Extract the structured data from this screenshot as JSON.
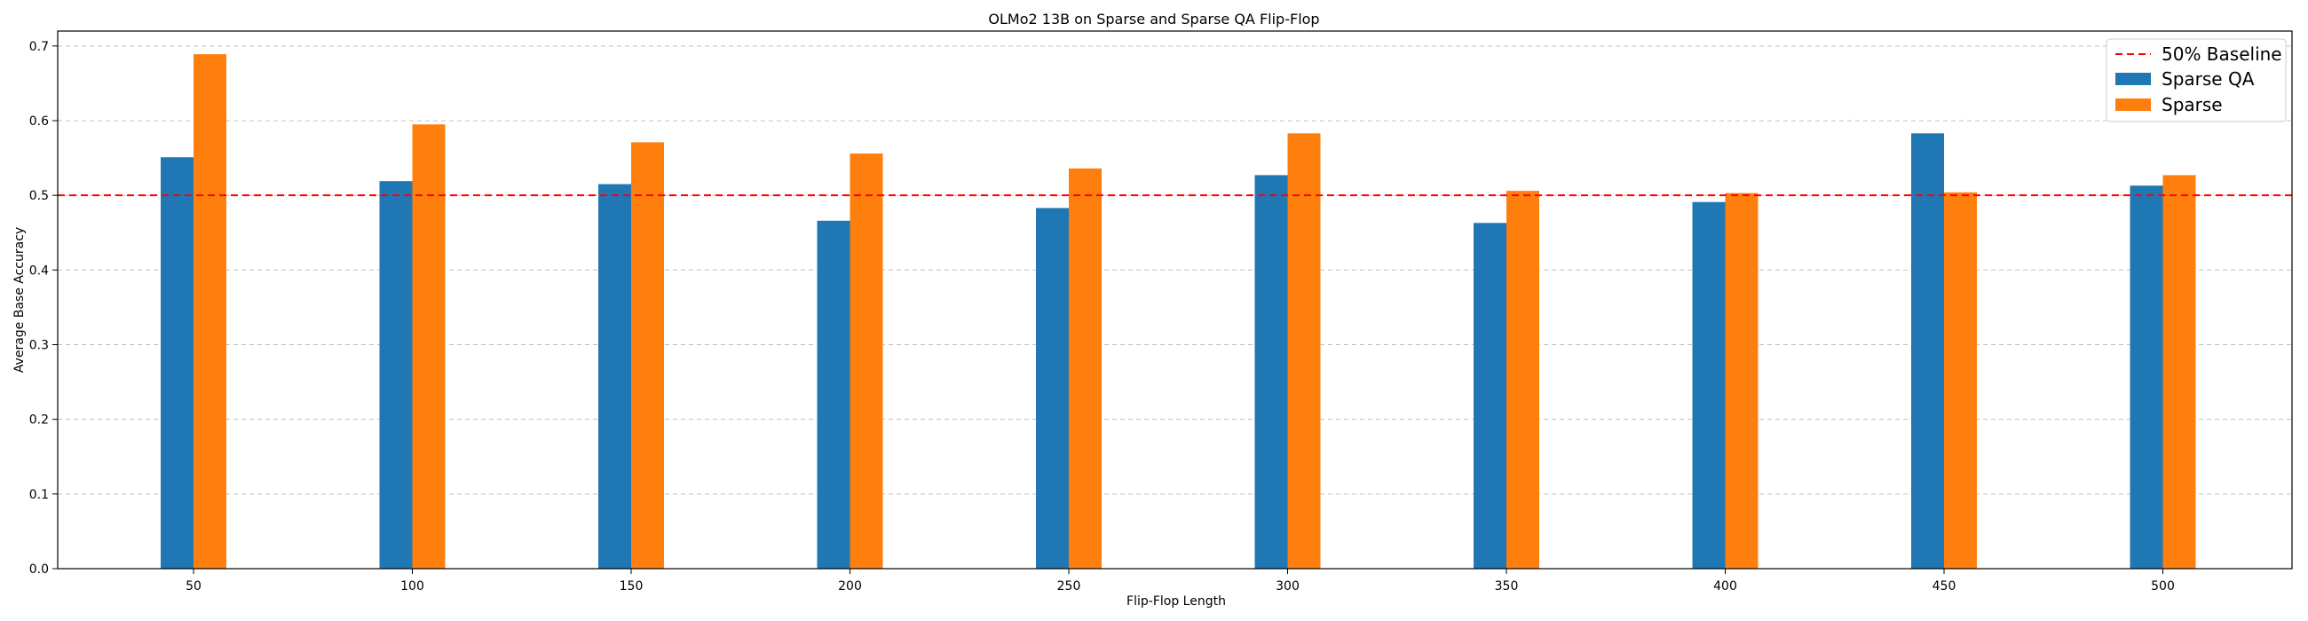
{
  "chart_data": {
    "type": "bar",
    "title": "OLMo2 13B on Sparse and Sparse QA Flip-Flop",
    "xlabel": "Flip-Flop Length",
    "ylabel": "Average Base Accuracy",
    "categories": [
      "50",
      "100",
      "150",
      "200",
      "250",
      "300",
      "350",
      "400",
      "450",
      "500"
    ],
    "series": [
      {
        "name": "Sparse QA",
        "color": "#1f77b4",
        "values": [
          0.551,
          0.519,
          0.515,
          0.466,
          0.483,
          0.527,
          0.463,
          0.491,
          0.583,
          0.513
        ]
      },
      {
        "name": "Sparse",
        "color": "#ff7f0e",
        "values": [
          0.689,
          0.595,
          0.571,
          0.556,
          0.536,
          0.583,
          0.506,
          0.503,
          0.504,
          0.527
        ]
      }
    ],
    "baseline": {
      "name": "50% Baseline",
      "value": 0.5,
      "color": "#ff0000",
      "style": "dashed"
    },
    "ylim": [
      0.0,
      0.72
    ],
    "yticks": [
      "0.0",
      "0.1",
      "0.2",
      "0.3",
      "0.4",
      "0.5",
      "0.6",
      "0.7"
    ],
    "grid": "y-axis dashed",
    "legend_position": "top-right"
  }
}
